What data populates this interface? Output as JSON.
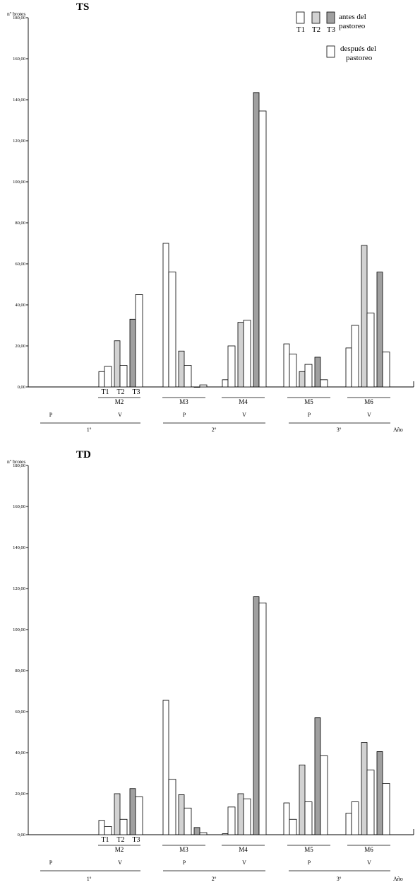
{
  "chart_data": [
    {
      "type": "bar",
      "title": "TS",
      "ylabel": "nº brotes",
      "ylim": [
        0,
        180
      ],
      "yticks": [
        "0,00",
        "20,00",
        "40,00",
        "60,00",
        "80,00",
        "100,00",
        "120,00",
        "140,00",
        "160,00",
        "180,00"
      ],
      "treatments": [
        "T1",
        "T2",
        "T3"
      ],
      "measurements": [
        "M2",
        "M3",
        "M4",
        "M5",
        "M6"
      ],
      "seasons": [
        "P",
        "V",
        "P",
        "V",
        "P",
        "V"
      ],
      "years": [
        "1º",
        "2º",
        "3º"
      ],
      "year_axis_label": "Año",
      "legend": {
        "before_labels": [
          "antes del",
          "pastoreo"
        ],
        "after_labels": [
          "después del",
          "pastoreo"
        ],
        "treatment_labels": [
          "T1",
          "T2",
          "T3"
        ]
      },
      "colors": {
        "T1": "#ffffff",
        "T2": "#d2d2d2",
        "T3": "#a0a0a0",
        "after": "#ffffff"
      },
      "series": [
        {
          "measurement": "M2",
          "treatment": "T1",
          "before": 7.5,
          "after": 10
        },
        {
          "measurement": "M2",
          "treatment": "T2",
          "before": 22.5,
          "after": 10.5
        },
        {
          "measurement": "M2",
          "treatment": "T3",
          "before": 33,
          "after": 45
        },
        {
          "measurement": "M3",
          "treatment": "T1",
          "before": 70,
          "after": 56
        },
        {
          "measurement": "M3",
          "treatment": "T2",
          "before": 17.5,
          "after": 10.5
        },
        {
          "measurement": "M3",
          "treatment": "T3",
          "before": 0,
          "after": 1
        },
        {
          "measurement": "M4",
          "treatment": "T1",
          "before": 3.5,
          "after": 20
        },
        {
          "measurement": "M4",
          "treatment": "T2",
          "before": 31.5,
          "after": 32.5
        },
        {
          "measurement": "M4",
          "treatment": "T3",
          "before": 143.5,
          "after": 134.5
        },
        {
          "measurement": "M5",
          "treatment": "T1",
          "before": 21,
          "after": 16
        },
        {
          "measurement": "M5",
          "treatment": "T2",
          "before": 7.5,
          "after": 11
        },
        {
          "measurement": "M5",
          "treatment": "T3",
          "before": 14.5,
          "after": 3.5
        },
        {
          "measurement": "M6",
          "treatment": "T1",
          "before": 19,
          "after": 30
        },
        {
          "measurement": "M6",
          "treatment": "T2",
          "before": 69,
          "after": 36
        },
        {
          "measurement": "M6",
          "treatment": "T3",
          "before": 56,
          "after": 17
        }
      ]
    },
    {
      "type": "bar",
      "title": "TD",
      "ylabel": "nº brotes",
      "ylim": [
        0,
        180
      ],
      "yticks": [
        "0,00",
        "20,00",
        "40,00",
        "60,00",
        "80,00",
        "100,00",
        "120,00",
        "140,00",
        "160,00",
        "180,00"
      ],
      "treatments": [
        "T1",
        "T2",
        "T3"
      ],
      "measurements": [
        "M2",
        "M3",
        "M4",
        "M5",
        "M6"
      ],
      "seasons": [
        "P",
        "V",
        "P",
        "V",
        "P",
        "V"
      ],
      "years": [
        "1º",
        "2º",
        "3º"
      ],
      "year_axis_label": "Año",
      "colors": {
        "T1": "#ffffff",
        "T2": "#d2d2d2",
        "T3": "#a0a0a0",
        "after": "#ffffff"
      },
      "series": [
        {
          "measurement": "M2",
          "treatment": "T1",
          "before": 7,
          "after": 4
        },
        {
          "measurement": "M2",
          "treatment": "T2",
          "before": 20,
          "after": 7.5
        },
        {
          "measurement": "M2",
          "treatment": "T3",
          "before": 22.5,
          "after": 18.5
        },
        {
          "measurement": "M3",
          "treatment": "T1",
          "before": 65.5,
          "after": 27
        },
        {
          "measurement": "M3",
          "treatment": "T2",
          "before": 19.5,
          "after": 13
        },
        {
          "measurement": "M3",
          "treatment": "T3",
          "before": 3.5,
          "after": 1
        },
        {
          "measurement": "M4",
          "treatment": "T1",
          "before": 0.5,
          "after": 13.5
        },
        {
          "measurement": "M4",
          "treatment": "T2",
          "before": 20,
          "after": 17.5
        },
        {
          "measurement": "M4",
          "treatment": "T3",
          "before": 116,
          "after": 113
        },
        {
          "measurement": "M5",
          "treatment": "T1",
          "before": 15.5,
          "after": 7.5
        },
        {
          "measurement": "M5",
          "treatment": "T2",
          "before": 34,
          "after": 16
        },
        {
          "measurement": "M5",
          "treatment": "T3",
          "before": 57,
          "after": 38.5
        },
        {
          "measurement": "M6",
          "treatment": "T1",
          "before": 10.5,
          "after": 16
        },
        {
          "measurement": "M6",
          "treatment": "T2",
          "before": 45,
          "after": 31.5
        },
        {
          "measurement": "M6",
          "treatment": "T3",
          "before": 40.5,
          "after": 25
        }
      ]
    }
  ]
}
